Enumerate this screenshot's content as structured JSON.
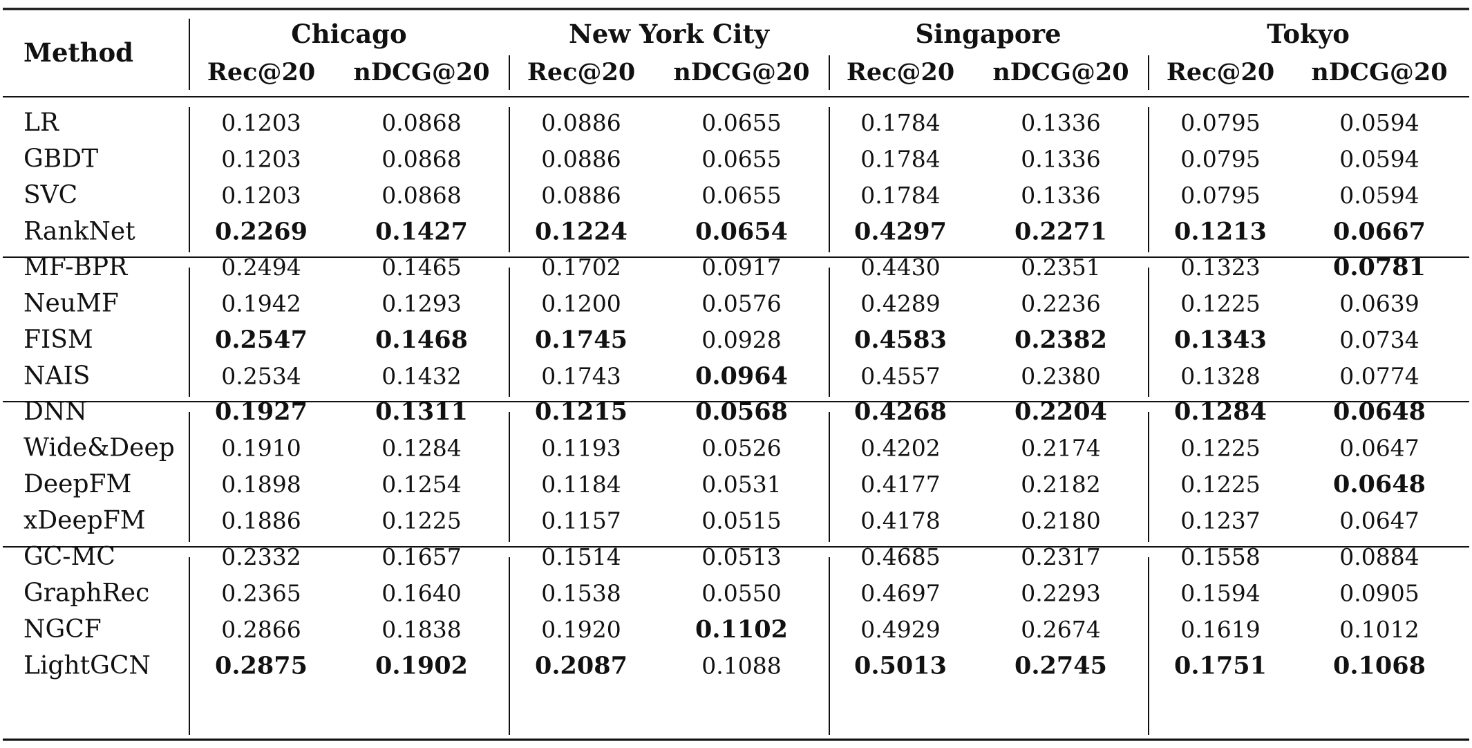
{
  "table": {
    "method_header": "Method",
    "cities": [
      {
        "name": "Chicago",
        "metrics": [
          "Rec@20",
          "nDCG@20"
        ]
      },
      {
        "name": "New York City",
        "metrics": [
          "Rec@20",
          "nDCG@20"
        ]
      },
      {
        "name": "Singapore",
        "metrics": [
          "Rec@20",
          "nDCG@20"
        ]
      },
      {
        "name": "Tokyo",
        "metrics": [
          "Rec@20",
          "nDCG@20"
        ]
      }
    ],
    "groups": [
      {
        "rows": [
          {
            "method": "LR",
            "values": [
              "0.1203",
              "0.0868",
              "0.0886",
              "0.0655",
              "0.1784",
              "0.1336",
              "0.0795",
              "0.0594"
            ],
            "bold": [
              0,
              0,
              0,
              0,
              0,
              0,
              0,
              0
            ]
          },
          {
            "method": "GBDT",
            "values": [
              "0.1203",
              "0.0868",
              "0.0886",
              "0.0655",
              "0.1784",
              "0.1336",
              "0.0795",
              "0.0594"
            ],
            "bold": [
              0,
              0,
              0,
              0,
              0,
              0,
              0,
              0
            ]
          },
          {
            "method": "SVC",
            "values": [
              "0.1203",
              "0.0868",
              "0.0886",
              "0.0655",
              "0.1784",
              "0.1336",
              "0.0795",
              "0.0594"
            ],
            "bold": [
              0,
              0,
              0,
              0,
              0,
              0,
              0,
              0
            ]
          },
          {
            "method": "RankNet",
            "values": [
              "0.2269",
              "0.1427",
              "0.1224",
              "0.0654",
              "0.4297",
              "0.2271",
              "0.1213",
              "0.0667"
            ],
            "bold": [
              1,
              1,
              1,
              1,
              1,
              1,
              1,
              1
            ]
          }
        ]
      },
      {
        "rows": [
          {
            "method": "MF-BPR",
            "values": [
              "0.2494",
              "0.1465",
              "0.1702",
              "0.0917",
              "0.4430",
              "0.2351",
              "0.1323",
              "0.0781"
            ],
            "bold": [
              0,
              0,
              0,
              0,
              0,
              0,
              0,
              1
            ]
          },
          {
            "method": "NeuMF",
            "values": [
              "0.1942",
              "0.1293",
              "0.1200",
              "0.0576",
              "0.4289",
              "0.2236",
              "0.1225",
              "0.0639"
            ],
            "bold": [
              0,
              0,
              0,
              0,
              0,
              0,
              0,
              0
            ]
          },
          {
            "method": "FISM",
            "values": [
              "0.2547",
              "0.1468",
              "0.1745",
              "0.0928",
              "0.4583",
              "0.2382",
              "0.1343",
              "0.0734"
            ],
            "bold": [
              1,
              1,
              1,
              0,
              1,
              1,
              1,
              0
            ]
          },
          {
            "method": "NAIS",
            "values": [
              "0.2534",
              "0.1432",
              "0.1743",
              "0.0964",
              "0.4557",
              "0.2380",
              "0.1328",
              "0.0774"
            ],
            "bold": [
              0,
              0,
              0,
              1,
              0,
              0,
              0,
              0
            ]
          }
        ]
      },
      {
        "rows": [
          {
            "method": "DNN",
            "values": [
              "0.1927",
              "0.1311",
              "0.1215",
              "0.0568",
              "0.4268",
              "0.2204",
              "0.1284",
              "0.0648"
            ],
            "bold": [
              1,
              1,
              1,
              1,
              1,
              1,
              1,
              1
            ]
          },
          {
            "method": "Wide&Deep",
            "values": [
              "0.1910",
              "0.1284",
              "0.1193",
              "0.0526",
              "0.4202",
              "0.2174",
              "0.1225",
              "0.0647"
            ],
            "bold": [
              0,
              0,
              0,
              0,
              0,
              0,
              0,
              0
            ]
          },
          {
            "method": "DeepFM",
            "values": [
              "0.1898",
              "0.1254",
              "0.1184",
              "0.0531",
              "0.4177",
              "0.2182",
              "0.1225",
              "0.0648"
            ],
            "bold": [
              0,
              0,
              0,
              0,
              0,
              0,
              0,
              1
            ]
          },
          {
            "method": "xDeepFM",
            "values": [
              "0.1886",
              "0.1225",
              "0.1157",
              "0.0515",
              "0.4178",
              "0.2180",
              "0.1237",
              "0.0647"
            ],
            "bold": [
              0,
              0,
              0,
              0,
              0,
              0,
              0,
              0
            ]
          }
        ]
      },
      {
        "rows": [
          {
            "method": "GC-MC",
            "values": [
              "0.2332",
              "0.1657",
              "0.1514",
              "0.0513",
              "0.4685",
              "0.2317",
              "0.1558",
              "0.0884"
            ],
            "bold": [
              0,
              0,
              0,
              0,
              0,
              0,
              0,
              0
            ]
          },
          {
            "method": "GraphRec",
            "values": [
              "0.2365",
              "0.1640",
              "0.1538",
              "0.0550",
              "0.4697",
              "0.2293",
              "0.1594",
              "0.0905"
            ],
            "bold": [
              0,
              0,
              0,
              0,
              0,
              0,
              0,
              0
            ]
          },
          {
            "method": "NGCF",
            "values": [
              "0.2866",
              "0.1838",
              "0.1920",
              "0.1102",
              "0.4929",
              "0.2674",
              "0.1619",
              "0.1012"
            ],
            "bold": [
              0,
              0,
              0,
              1,
              0,
              0,
              0,
              0
            ]
          },
          {
            "method": "LightGCN",
            "values": [
              "0.2875",
              "0.1902",
              "0.2087",
              "0.1088",
              "0.5013",
              "0.2745",
              "0.1751",
              "0.1068"
            ],
            "bold": [
              1,
              1,
              1,
              0,
              1,
              1,
              1,
              1
            ]
          }
        ]
      }
    ]
  }
}
